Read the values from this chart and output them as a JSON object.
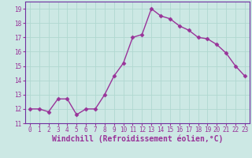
{
  "x": [
    0,
    1,
    2,
    3,
    4,
    5,
    6,
    7,
    8,
    9,
    10,
    11,
    12,
    13,
    14,
    15,
    16,
    17,
    18,
    19,
    20,
    21,
    22,
    23
  ],
  "y": [
    12.0,
    12.0,
    11.8,
    12.7,
    12.7,
    11.6,
    12.0,
    12.0,
    13.0,
    14.3,
    15.2,
    17.0,
    17.2,
    19.0,
    18.5,
    18.3,
    17.8,
    17.5,
    17.0,
    16.9,
    16.5,
    15.9,
    15.0,
    14.3
  ],
  "line_color": "#993399",
  "marker": "D",
  "markersize": 2.5,
  "linewidth": 1.0,
  "xlabel": "Windchill (Refroidissement éolien,°C)",
  "xlabel_fontsize": 7,
  "xlim": [
    -0.5,
    23.5
  ],
  "ylim": [
    11.0,
    19.5
  ],
  "yticks": [
    11,
    12,
    13,
    14,
    15,
    16,
    17,
    18,
    19
  ],
  "xticks": [
    0,
    1,
    2,
    3,
    4,
    5,
    6,
    7,
    8,
    9,
    10,
    11,
    12,
    13,
    14,
    15,
    16,
    17,
    18,
    19,
    20,
    21,
    22,
    23
  ],
  "grid_color": "#b0d8d0",
  "background_color": "#cce8e4",
  "tick_fontsize": 5.5,
  "fig_bg": "#cce8e4",
  "spine_color": "#7030a0"
}
